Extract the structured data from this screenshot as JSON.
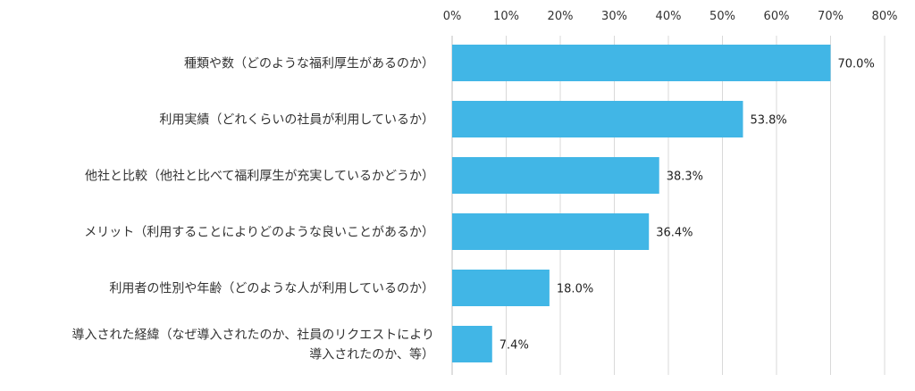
{
  "chart_data": {
    "type": "bar",
    "orientation": "horizontal",
    "categories": [
      [
        "種類や数（どのような福利厚生があるのか）"
      ],
      [
        "利用実績（どれくらいの社員が利用しているか）"
      ],
      [
        "他社と比較（他社と比べて福利厚生が充実しているかどうか）"
      ],
      [
        "メリット（利用することによりどのような良いことがあるか）"
      ],
      [
        "利用者の性別や年齢（どのような人が利用しているのか）"
      ],
      [
        "導入された経緯（なぜ導入されたのか、社員のリクエストにより",
        "導入されたのか、等）"
      ]
    ],
    "values": [
      70.0,
      53.8,
      38.3,
      36.4,
      18.0,
      7.4
    ],
    "data_labels": [
      "70.0%",
      "53.8%",
      "38.3%",
      "36.4%",
      "18.0%",
      "7.4%"
    ],
    "x_ticks": [
      "0%",
      "10%",
      "20%",
      "30%",
      "40%",
      "50%",
      "60%",
      "70%",
      "80%"
    ],
    "xlim": [
      0,
      80
    ],
    "xaxis_position": "top",
    "grid": true,
    "bar_color": "#41b6e6"
  }
}
